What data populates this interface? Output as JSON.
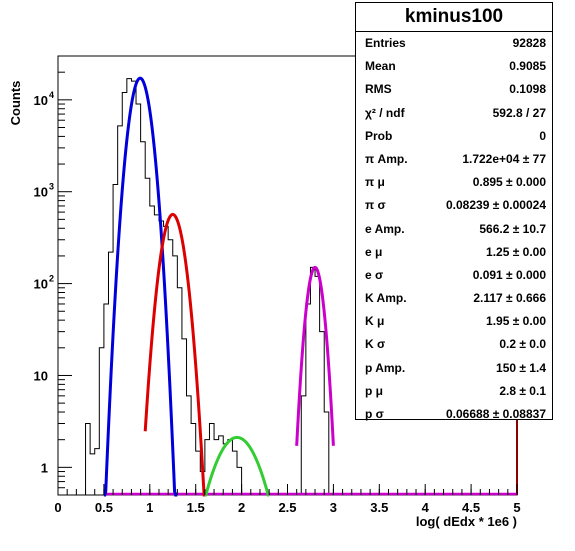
{
  "chart_data": {
    "type": "histogram",
    "xlabel": "log( dEdx * 1e6 )",
    "ylabel": "Counts",
    "xlim": [
      0,
      5
    ],
    "ylim": [
      0.5,
      30000
    ],
    "yscale": "log",
    "x_ticks": [
      "0",
      "0.5",
      "1",
      "1.5",
      "2",
      "2.5",
      "3",
      "3.5",
      "4",
      "4.5",
      "5"
    ],
    "y_ticks": [
      {
        "value": 1,
        "label": "1"
      },
      {
        "value": 10,
        "label": "10"
      },
      {
        "value": 100,
        "label": "10",
        "exp": "2"
      },
      {
        "value": 1000,
        "label": "10",
        "exp": "3"
      },
      {
        "value": 10000,
        "label": "10",
        "exp": "4"
      }
    ],
    "histogram": {
      "bin_edges": [
        0.2,
        0.3,
        0.35,
        0.4,
        0.45,
        0.5,
        0.55,
        0.6,
        0.65,
        0.7,
        0.75,
        0.8,
        0.85,
        0.9,
        0.95,
        1.0,
        1.05,
        1.1,
        1.15,
        1.2,
        1.25,
        1.3,
        1.35,
        1.4,
        1.45,
        1.5,
        1.55,
        1.6,
        1.65,
        1.7,
        1.75,
        1.8,
        1.85,
        1.9,
        1.95,
        2.0,
        2.05,
        2.1,
        2.15,
        2.2,
        2.25,
        2.6,
        2.65,
        2.7,
        2.75,
        2.8,
        2.85,
        2.9,
        2.95,
        3.0,
        5.0
      ],
      "counts": [
        0.5,
        3,
        1.4,
        1.6,
        20,
        60,
        220,
        1200,
        5200,
        12000,
        17000,
        16000,
        9000,
        3500,
        1400,
        700,
        560,
        480,
        420,
        300,
        200,
        90,
        25,
        6,
        3,
        1.5,
        0.9,
        2,
        3,
        2,
        2.2,
        1.8,
        2,
        1.5,
        1,
        0.5,
        0.5,
        0.5,
        0.5,
        0.5,
        0.5,
        0.5,
        6,
        60,
        150,
        120,
        30,
        4,
        0.5,
        0.5
      ]
    },
    "fits": [
      {
        "name": "π",
        "color": "#0000dd",
        "amp": 17220,
        "mean": 0.895,
        "sigma": 0.08239,
        "range": [
          0.5,
          1.3
        ]
      },
      {
        "name": "e",
        "color": "#dd0000",
        "amp": 566.2,
        "mean": 1.25,
        "sigma": 0.091,
        "range": [
          0.95,
          1.6
        ]
      },
      {
        "name": "K",
        "color": "#33cc33",
        "amp": 2.117,
        "mean": 1.95,
        "sigma": 0.2,
        "range": [
          1.6,
          2.3
        ]
      },
      {
        "name": "p",
        "color": "#cc00cc",
        "amp": 150,
        "mean": 2.8,
        "sigma": 0.06688,
        "range": [
          2.6,
          3.0
        ]
      }
    ],
    "baseline_color": "#cc00cc",
    "legend_placement": "top-right"
  },
  "stats": {
    "title": "kminus100",
    "rows": [
      {
        "key": "Entries",
        "value": "92828"
      },
      {
        "key": "Mean",
        "value": "0.9085"
      },
      {
        "key": "RMS",
        "value": "0.1098"
      },
      {
        "key": "χ² / ndf",
        "value": "592.8 / 27"
      },
      {
        "key": "Prob",
        "value": "0"
      },
      {
        "key": "π Amp.",
        "value": "1.722e+04 ± 77"
      },
      {
        "key": "π μ",
        "value": "0.895 ± 0.000"
      },
      {
        "key": "π σ",
        "value": "0.08239 ± 0.00024"
      },
      {
        "key": "e Amp.",
        "value": "566.2 ± 10.7"
      },
      {
        "key": "e μ",
        "value": "1.25 ± 0.00"
      },
      {
        "key": "e σ",
        "value": "0.091 ± 0.000"
      },
      {
        "key": "K Amp.",
        "value": "2.117 ± 0.666"
      },
      {
        "key": "K μ",
        "value": "1.95 ± 0.00"
      },
      {
        "key": "K σ",
        "value": "0.2 ± 0.0"
      },
      {
        "key": "p Amp.",
        "value": "150 ± 1.4"
      },
      {
        "key": "p μ",
        "value": "2.8 ± 0.1"
      },
      {
        "key": "p σ",
        "value": "0.06688 ± 0.08837"
      }
    ]
  }
}
